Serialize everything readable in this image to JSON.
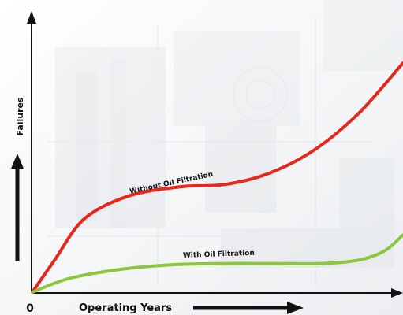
{
  "chart_data": {
    "type": "line",
    "title": "",
    "xlabel": "Operating Years",
    "ylabel": "Failures",
    "x_tick_labels": [
      "0"
    ],
    "grid": false,
    "legend": "none",
    "series": [
      {
        "name": "Without Oil Filtration",
        "color": "#e8261c",
        "points": [
          [
            0,
            0
          ],
          [
            0.06,
            0.14
          ],
          [
            0.14,
            0.32
          ],
          [
            0.26,
            0.42
          ],
          [
            0.4,
            0.46
          ],
          [
            0.52,
            0.47
          ],
          [
            0.64,
            0.52
          ],
          [
            0.76,
            0.62
          ],
          [
            0.88,
            0.78
          ],
          [
            1.0,
            1.0
          ]
        ]
      },
      {
        "name": "With Oil Filtration",
        "color": "#8cc63f",
        "points": [
          [
            0,
            0
          ],
          [
            0.1,
            0.06
          ],
          [
            0.24,
            0.1
          ],
          [
            0.38,
            0.12
          ],
          [
            0.52,
            0.125
          ],
          [
            0.66,
            0.125
          ],
          [
            0.78,
            0.125
          ],
          [
            0.88,
            0.14
          ],
          [
            0.95,
            0.18
          ],
          [
            1.0,
            0.25
          ]
        ]
      }
    ]
  }
}
